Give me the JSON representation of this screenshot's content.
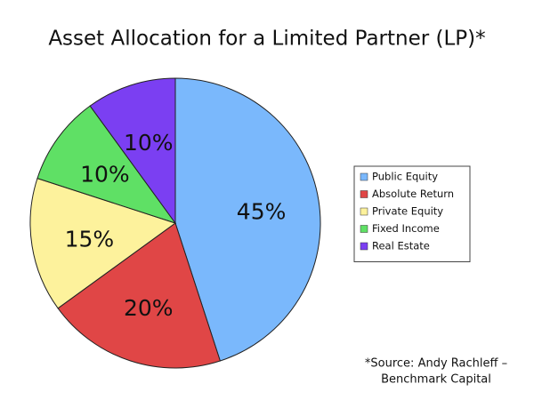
{
  "chart_data": {
    "type": "pie",
    "title": "Asset Allocation for a Limited Partner (LP)*",
    "categories": [
      "Public Equity",
      "Absolute Return",
      "Private Equity",
      "Fixed Income",
      "Real Estate"
    ],
    "values": [
      45,
      20,
      15,
      10,
      10
    ],
    "value_labels": [
      "45%",
      "20%",
      "15%",
      "10%",
      "10%"
    ],
    "colors": [
      "#7ab8fc",
      "#e04646",
      "#fdf29c",
      "#5fe065",
      "#7b3ff2"
    ],
    "legend": "right",
    "source": [
      "*Source:  Andy Rachleff –",
      "Benchmark Capital"
    ]
  }
}
